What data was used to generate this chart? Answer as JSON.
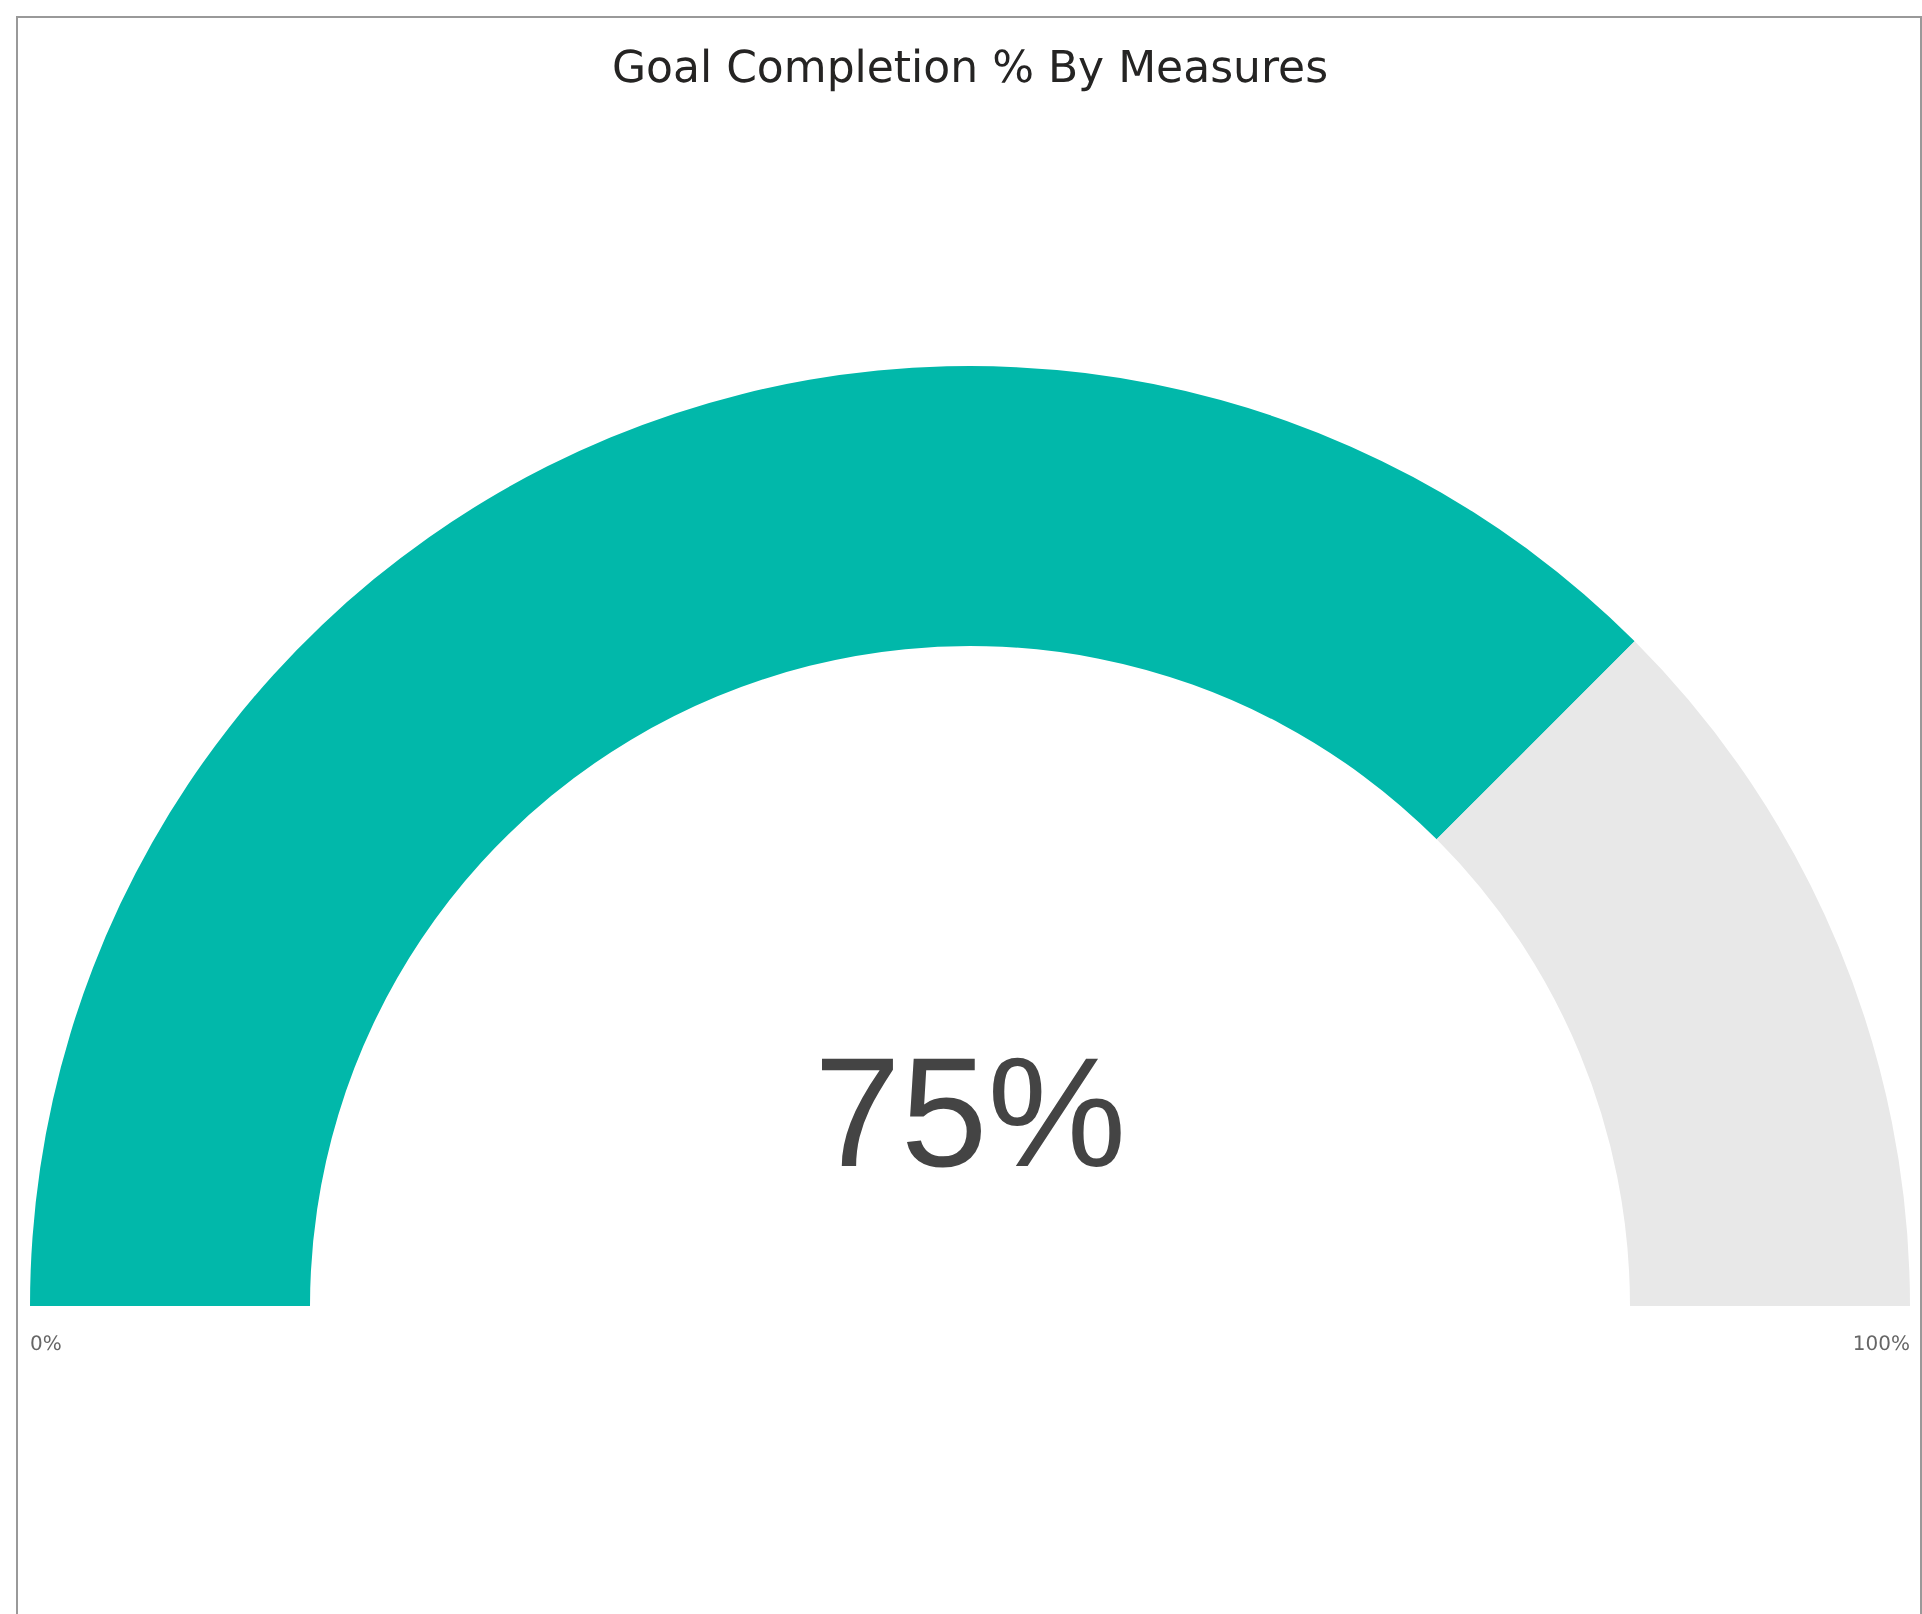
{
  "chart_data": {
    "type": "donut",
    "title": "Goal Completion % By Measures",
    "categories": [
      null,
      null
    ],
    "values": [
      75,
      25
    ],
    "colors": [
      "#01b8aa",
      "#e8e8e8"
    ],
    "value_labels": [
      "75%",
      null
    ],
    "annotations": [
      "0%",
      "100%"
    ]
  }
}
